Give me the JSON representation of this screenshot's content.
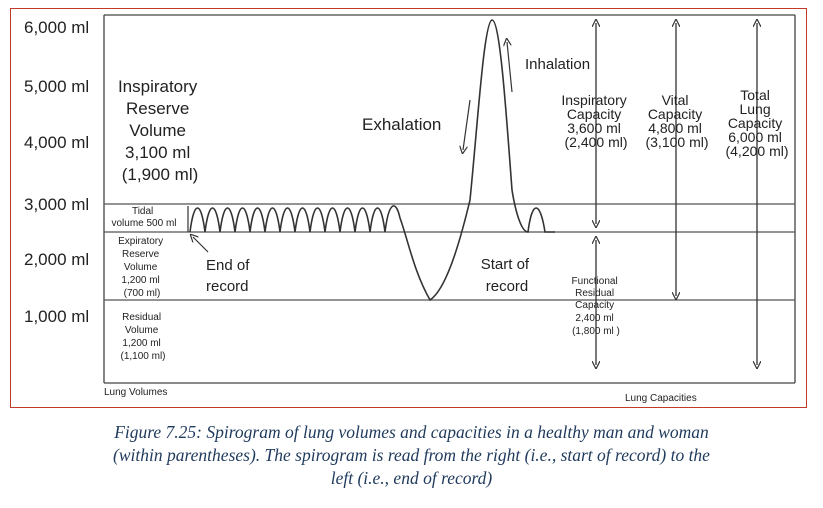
{
  "y_axis_labels": [
    "6,000 ml",
    "5,000 ml",
    "4,000 ml",
    "3,000 ml",
    "2,000 ml",
    "1,000 ml"
  ],
  "irv": {
    "lines": [
      "Inspiratory",
      "Reserve",
      "Volume",
      "3,100 ml",
      "(1,900 ml)"
    ]
  },
  "tidal": {
    "lines": [
      "Tidal",
      "volume 500 ml"
    ]
  },
  "erv": {
    "lines": [
      "Expiratory",
      "Reserve",
      "Volume",
      "1,200 ml",
      "(700 ml)"
    ]
  },
  "rv": {
    "lines": [
      "Residual",
      "Volume",
      "1,200 ml",
      "(1,100 ml)"
    ]
  },
  "end_of_record": {
    "lines": [
      "End of",
      "record"
    ]
  },
  "start_of_record": {
    "lines": [
      "Start of",
      "record"
    ]
  },
  "exhalation": "Exhalation",
  "inhalation": "Inhalation",
  "ic": {
    "lines": [
      "Inspiratory",
      "Capacity",
      "3,600 ml",
      "(2,400 ml)"
    ]
  },
  "vc": {
    "lines": [
      "Vital",
      "Capacity",
      "4,800 ml",
      "(3,100 ml)"
    ]
  },
  "tlc": {
    "lines": [
      "Total",
      "Lung",
      "Capacity",
      "6,000 ml",
      "(4,200 ml)"
    ]
  },
  "frc": {
    "lines": [
      "Functional",
      "Residual",
      "Capacity",
      "2,400 ml",
      "(1,800 ml )"
    ]
  },
  "lung_volumes_label": "Lung Volumes",
  "lung_capacities_label": "Lung Capacities",
  "caption": [
    "Figure 7.25: Spirogram of lung volumes and capacities in a healthy man and woman",
    "(within parentheses). The spirogram is read from the right (i.e., start of record) to the",
    "left (i.e., end of record)"
  ]
}
